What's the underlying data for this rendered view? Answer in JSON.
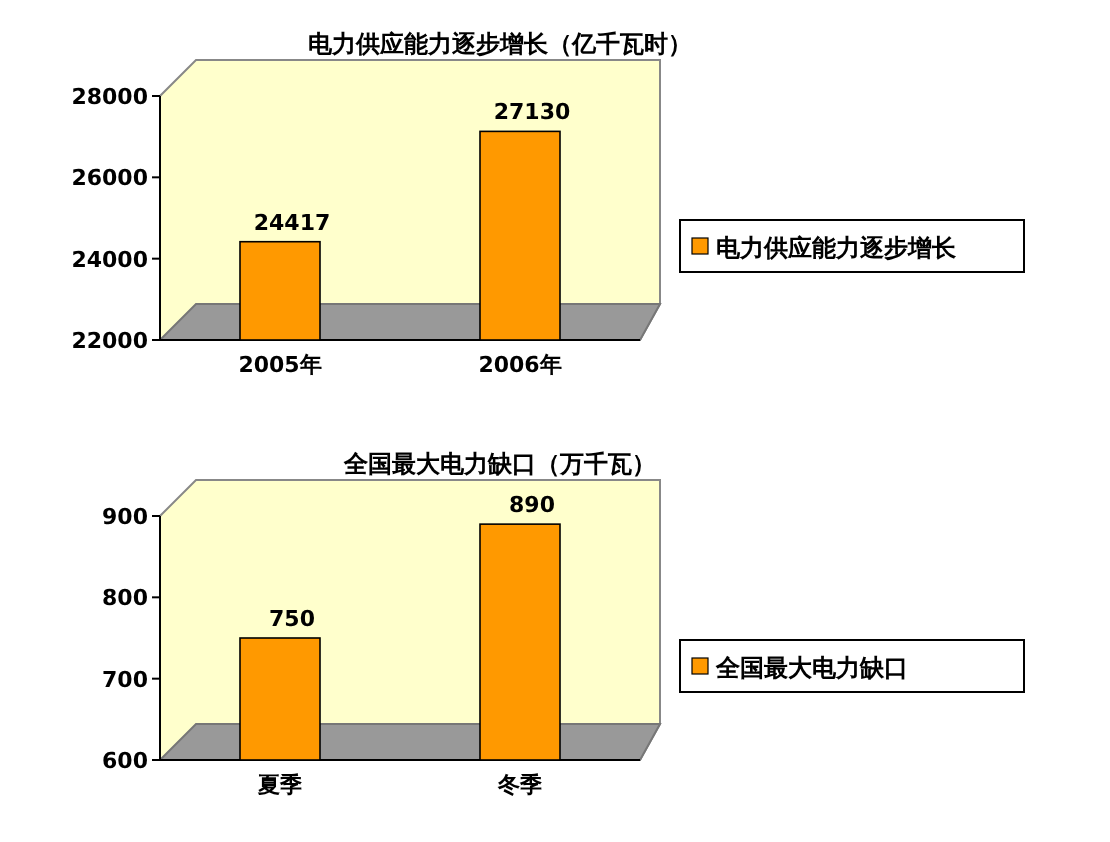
{
  "chart_data": [
    {
      "type": "bar",
      "title": "电力供应能力逐步增长（亿千瓦时）",
      "categories": [
        "2005年",
        "2006年"
      ],
      "series": [
        {
          "name": "电力供应能力逐步增长",
          "color": "#ff9900",
          "values": [
            24417,
            27130
          ]
        }
      ],
      "ylim": [
        22000,
        28000
      ],
      "yticks": [
        22000,
        24000,
        26000,
        28000
      ],
      "data_labels": true,
      "legend": "right"
    },
    {
      "type": "bar",
      "title": "全国最大电力缺口（万千瓦）",
      "categories": [
        "夏季",
        "冬季"
      ],
      "series": [
        {
          "name": "全国最大电力缺口",
          "color": "#ff9900",
          "values": [
            750,
            890
          ]
        }
      ],
      "ylim": [
        600,
        900
      ],
      "yticks": [
        600,
        700,
        800,
        900
      ],
      "data_labels": true,
      "legend": "right"
    }
  ]
}
